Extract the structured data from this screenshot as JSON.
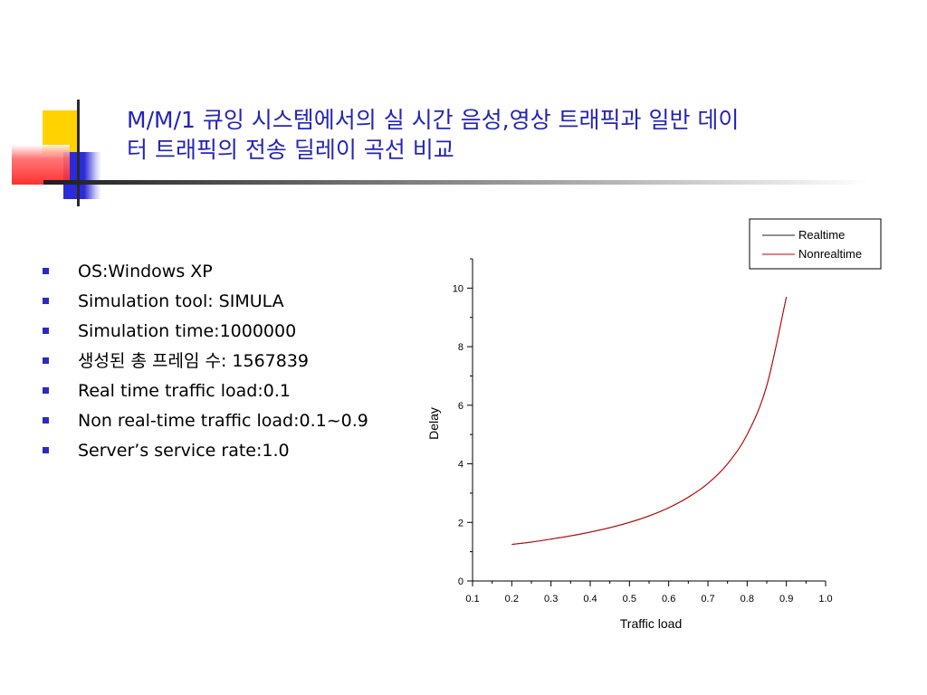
{
  "slide": {
    "title_lines": [
      "M/M/1 큐잉 시스템에서의 실 시간 음성,영상 트래픽과 일반 데이",
      "터 트래픽의 전송 딜레이 곡선 비교"
    ],
    "bullets": [
      "OS:Windows XP",
      "Simulation tool: SIMULA",
      "Simulation time:1000000",
      "생성된 총 프레임 수: 1567839",
      "Real time traffic load:0.1",
      "Non real-time traffic load:0.1~0.9",
      "Server’s service rate:1.0"
    ],
    "colors": {
      "title": "#2424b8",
      "bullet": "#2a2ac0",
      "realtime": "#222222",
      "nonrealtime": "#cc0000"
    }
  },
  "chart_data": {
    "type": "line",
    "xlabel": "Traffic load",
    "ylabel": "Delay",
    "xlim": [
      0.1,
      1.0
    ],
    "ylim": [
      0,
      11
    ],
    "x_ticks": [
      "0.1",
      "0.2",
      "0.3",
      "0.4",
      "0.5",
      "0.6",
      "0.7",
      "0.8",
      "0.9",
      "1.0"
    ],
    "y_ticks": [
      "0",
      "2",
      "4",
      "6",
      "8",
      "10"
    ],
    "legend_position": "top-right",
    "x": [
      0.2,
      0.25,
      0.3,
      0.35,
      0.4,
      0.45,
      0.5,
      0.55,
      0.6,
      0.65,
      0.7,
      0.75,
      0.8,
      0.85,
      0.9
    ],
    "series": [
      {
        "name": "Realtime",
        "values": [
          1.25,
          1.33,
          1.43,
          1.54,
          1.67,
          1.82,
          2.0,
          2.22,
          2.5,
          2.86,
          3.33,
          4.0,
          5.0,
          6.67,
          9.7
        ]
      },
      {
        "name": "Nonrealtime",
        "values": [
          1.25,
          1.33,
          1.43,
          1.54,
          1.67,
          1.82,
          2.0,
          2.22,
          2.5,
          2.86,
          3.33,
          4.0,
          5.0,
          6.67,
          9.7
        ]
      }
    ]
  }
}
